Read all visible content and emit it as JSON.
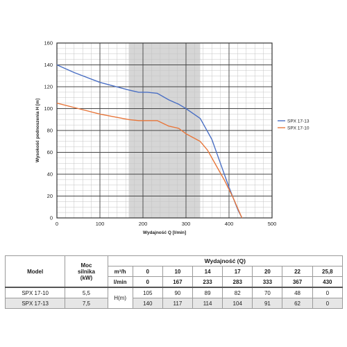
{
  "chart_data": {
    "type": "line",
    "xlabel": "Wydajność Q [l/min]",
    "ylabel": "Wysokość podnoszenia H [m]",
    "xlim": [
      0,
      500
    ],
    "ylim": [
      0,
      160
    ],
    "x_ticks": [
      "0",
      "100",
      "200",
      "300",
      "400",
      "500"
    ],
    "y_ticks": [
      "0",
      "20",
      "40",
      "60",
      "80",
      "100",
      "120",
      "140",
      "160"
    ],
    "grid": true,
    "highlight_band_x": [
      167,
      333
    ],
    "legend_position": "right",
    "series": [
      {
        "name": "SPX 17-13",
        "color": "#4a6fc4",
        "points": [
          [
            0,
            140
          ],
          [
            40,
            133
          ],
          [
            100,
            124
          ],
          [
            167,
            117
          ],
          [
            190,
            115
          ],
          [
            210,
            115
          ],
          [
            233,
            114
          ],
          [
            260,
            108
          ],
          [
            283,
            104
          ],
          [
            300,
            100
          ],
          [
            333,
            91
          ],
          [
            360,
            72
          ],
          [
            380,
            50
          ],
          [
            400,
            28
          ],
          [
            420,
            8
          ],
          [
            430,
            0
          ]
        ]
      },
      {
        "name": "SPX 17-10",
        "color": "#e8763a",
        "points": [
          [
            0,
            105
          ],
          [
            50,
            100
          ],
          [
            100,
            95
          ],
          [
            167,
            90
          ],
          [
            190,
            89
          ],
          [
            210,
            89
          ],
          [
            233,
            89
          ],
          [
            260,
            84
          ],
          [
            283,
            82
          ],
          [
            300,
            77
          ],
          [
            333,
            70
          ],
          [
            350,
            62
          ],
          [
            370,
            48
          ],
          [
            390,
            34
          ],
          [
            410,
            18
          ],
          [
            430,
            0
          ]
        ]
      }
    ]
  },
  "table": {
    "model_header": "Model",
    "power_header_line1": "Moc",
    "power_header_line2": "silnika",
    "power_header_line3": "(kW)",
    "capacity_header": "Wydajność (Q)",
    "unit_m3h": "m³/h",
    "unit_lmin": "l/min",
    "h_label": "H(m)",
    "m3h_values": [
      "0",
      "10",
      "14",
      "17",
      "20",
      "22",
      "25,8"
    ],
    "lmin_values": [
      "0",
      "167",
      "233",
      "283",
      "333",
      "367",
      "430"
    ],
    "rows": [
      {
        "model": "SPX 17-10",
        "power": "5,5",
        "values": [
          "105",
          "90",
          "89",
          "82",
          "70",
          "48",
          "0"
        ]
      },
      {
        "model": "SPX 17-13",
        "power": "7,5",
        "values": [
          "140",
          "117",
          "114",
          "104",
          "91",
          "62",
          "0"
        ]
      }
    ]
  }
}
